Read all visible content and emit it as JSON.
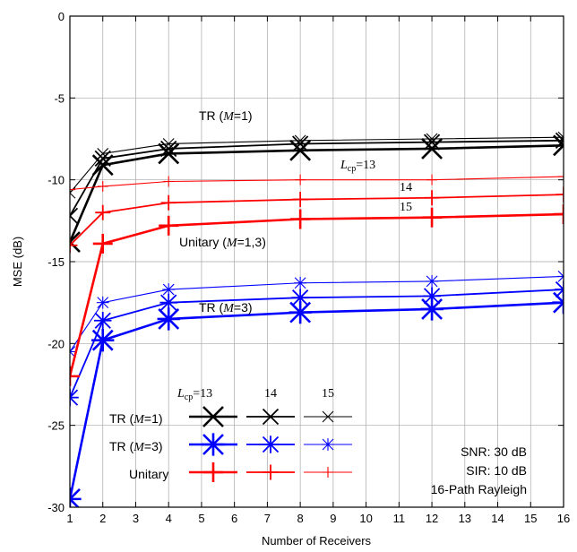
{
  "chart_data": {
    "type": "line",
    "title": "",
    "xlabel": "Number of Receivers",
    "ylabel": "MSE (dB)",
    "xlim": [
      1,
      16
    ],
    "ylim": [
      -30,
      0
    ],
    "xticks": [
      "1",
      "2",
      "3",
      "4",
      "5",
      "6",
      "7",
      "8",
      "9",
      "10",
      "11",
      "12",
      "13",
      "14",
      "15",
      "16"
    ],
    "yticks": [
      "0",
      "-5",
      "-10",
      "-15",
      "-20",
      "-25",
      "-30"
    ],
    "grid": true,
    "x": [
      1,
      2,
      4,
      8,
      12,
      16
    ],
    "colors": {
      "tr1": "#000000",
      "tr3": "#0000ff",
      "unitary": "#ff0000"
    },
    "series": [
      {
        "group": "tr1",
        "lcp": "13",
        "marker": "x",
        "size": 11,
        "width": 2.6,
        "values": [
          -13.8,
          -9.1,
          -8.4,
          -8.2,
          -8.1,
          -7.9
        ]
      },
      {
        "group": "tr1",
        "lcp": "14",
        "marker": "x",
        "size": 8.5,
        "width": 1.8,
        "values": [
          -12.2,
          -8.7,
          -8.1,
          -7.8,
          -7.7,
          -7.6
        ]
      },
      {
        "group": "tr1",
        "lcp": "15",
        "marker": "x",
        "size": 6,
        "width": 1.1,
        "values": [
          -10.8,
          -8.4,
          -7.8,
          -7.6,
          -7.5,
          -7.4
        ]
      },
      {
        "group": "tr3",
        "lcp": "13",
        "marker": "star",
        "size": 11,
        "width": 2.6,
        "values": [
          -29.5,
          -19.8,
          -18.5,
          -18.1,
          -17.9,
          -17.5
        ]
      },
      {
        "group": "tr3",
        "lcp": "14",
        "marker": "star",
        "size": 8.5,
        "width": 1.8,
        "values": [
          -23.3,
          -18.6,
          -17.5,
          -17.2,
          -17.1,
          -16.7
        ]
      },
      {
        "group": "tr3",
        "lcp": "15",
        "marker": "star",
        "size": 6,
        "width": 1.1,
        "values": [
          -20.5,
          -17.5,
          -16.7,
          -16.3,
          -16.2,
          -15.9
        ]
      },
      {
        "group": "unitary",
        "lcp": "13",
        "marker": "plus",
        "size": 11,
        "width": 2.6,
        "values": [
          -22.0,
          -13.9,
          -12.8,
          -12.4,
          -12.3,
          -12.1
        ]
      },
      {
        "group": "unitary",
        "lcp": "14",
        "marker": "plus",
        "size": 8.5,
        "width": 1.8,
        "values": [
          -14.0,
          -12.0,
          -11.4,
          -11.2,
          -11.1,
          -10.9
        ]
      },
      {
        "group": "unitary",
        "lcp": "15",
        "marker": "plus",
        "size": 6,
        "width": 1.1,
        "values": [
          -10.6,
          -10.4,
          -10.1,
          -10.0,
          -10.0,
          -9.8
        ]
      }
    ],
    "annotations": {
      "tr1_label": "TR (",
      "tr1_var": "M",
      "tr1_eq": "=1)",
      "lcp_base": "L",
      "lcp_sub": "cp",
      "lcp_eq": "=13",
      "label_14": "14",
      "label_15": "15",
      "unitary_label": "Unitary (",
      "unitary_var": "M",
      "unitary_eq": "=1,3)",
      "tr3_label": "TR (",
      "tr3_var": "M",
      "tr3_eq": "=3)"
    },
    "legend": {
      "placement": "bottom-left",
      "header_lcp_base": "L",
      "header_lcp_sub": "cp",
      "header_lcp_eq": "=13",
      "header_14": "14",
      "header_15": "15",
      "rows": [
        {
          "group": "tr1",
          "prefix": "TR (",
          "var": "M",
          "suffix": "=1)"
        },
        {
          "group": "tr3",
          "prefix": "TR (",
          "var": "M",
          "suffix": "=3)"
        },
        {
          "group": "unitary",
          "prefix": "Unitary",
          "var": "",
          "suffix": ""
        }
      ]
    },
    "info_box": {
      "lines": [
        "SNR: 30 dB",
        "SIR: 10 dB",
        "16-Path Rayleigh"
      ]
    }
  }
}
